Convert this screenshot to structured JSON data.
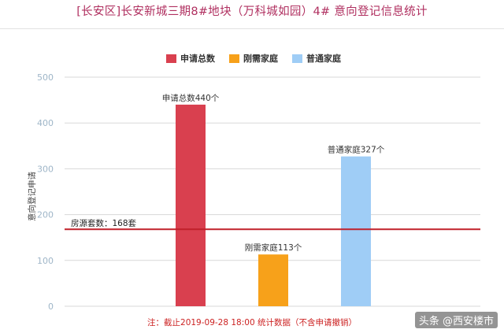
{
  "title": "[长安区]长安新城三期8#地块（万科城如园）4# 意向登记信息统计",
  "footnote": "注：截止2019-09-28 18:00 统计数据（不含申请撤销）",
  "watermark": "头条 @西安楼市",
  "chart_data": {
    "type": "bar",
    "categories": [
      "申请总数",
      "刚需家庭",
      "普通家庭"
    ],
    "values": [
      440,
      113,
      327
    ],
    "colors": [
      "#d9404f",
      "#f7a11a",
      "#9fcdf6"
    ],
    "data_labels": [
      "申请总数440个",
      "刚需家庭113个",
      "普通家庭327个"
    ],
    "legend": [
      "申请总数",
      "刚需家庭",
      "普通家庭"
    ],
    "legend_placement": "top-center",
    "ylabel": "意向登记申请",
    "xlabel": "",
    "ylim": [
      0,
      500
    ],
    "yticks": [
      0,
      100,
      200,
      300,
      400,
      500
    ],
    "grid": true,
    "reference_line": {
      "value": 168,
      "label": "房源套数：168套",
      "color": "#c0202a"
    }
  }
}
